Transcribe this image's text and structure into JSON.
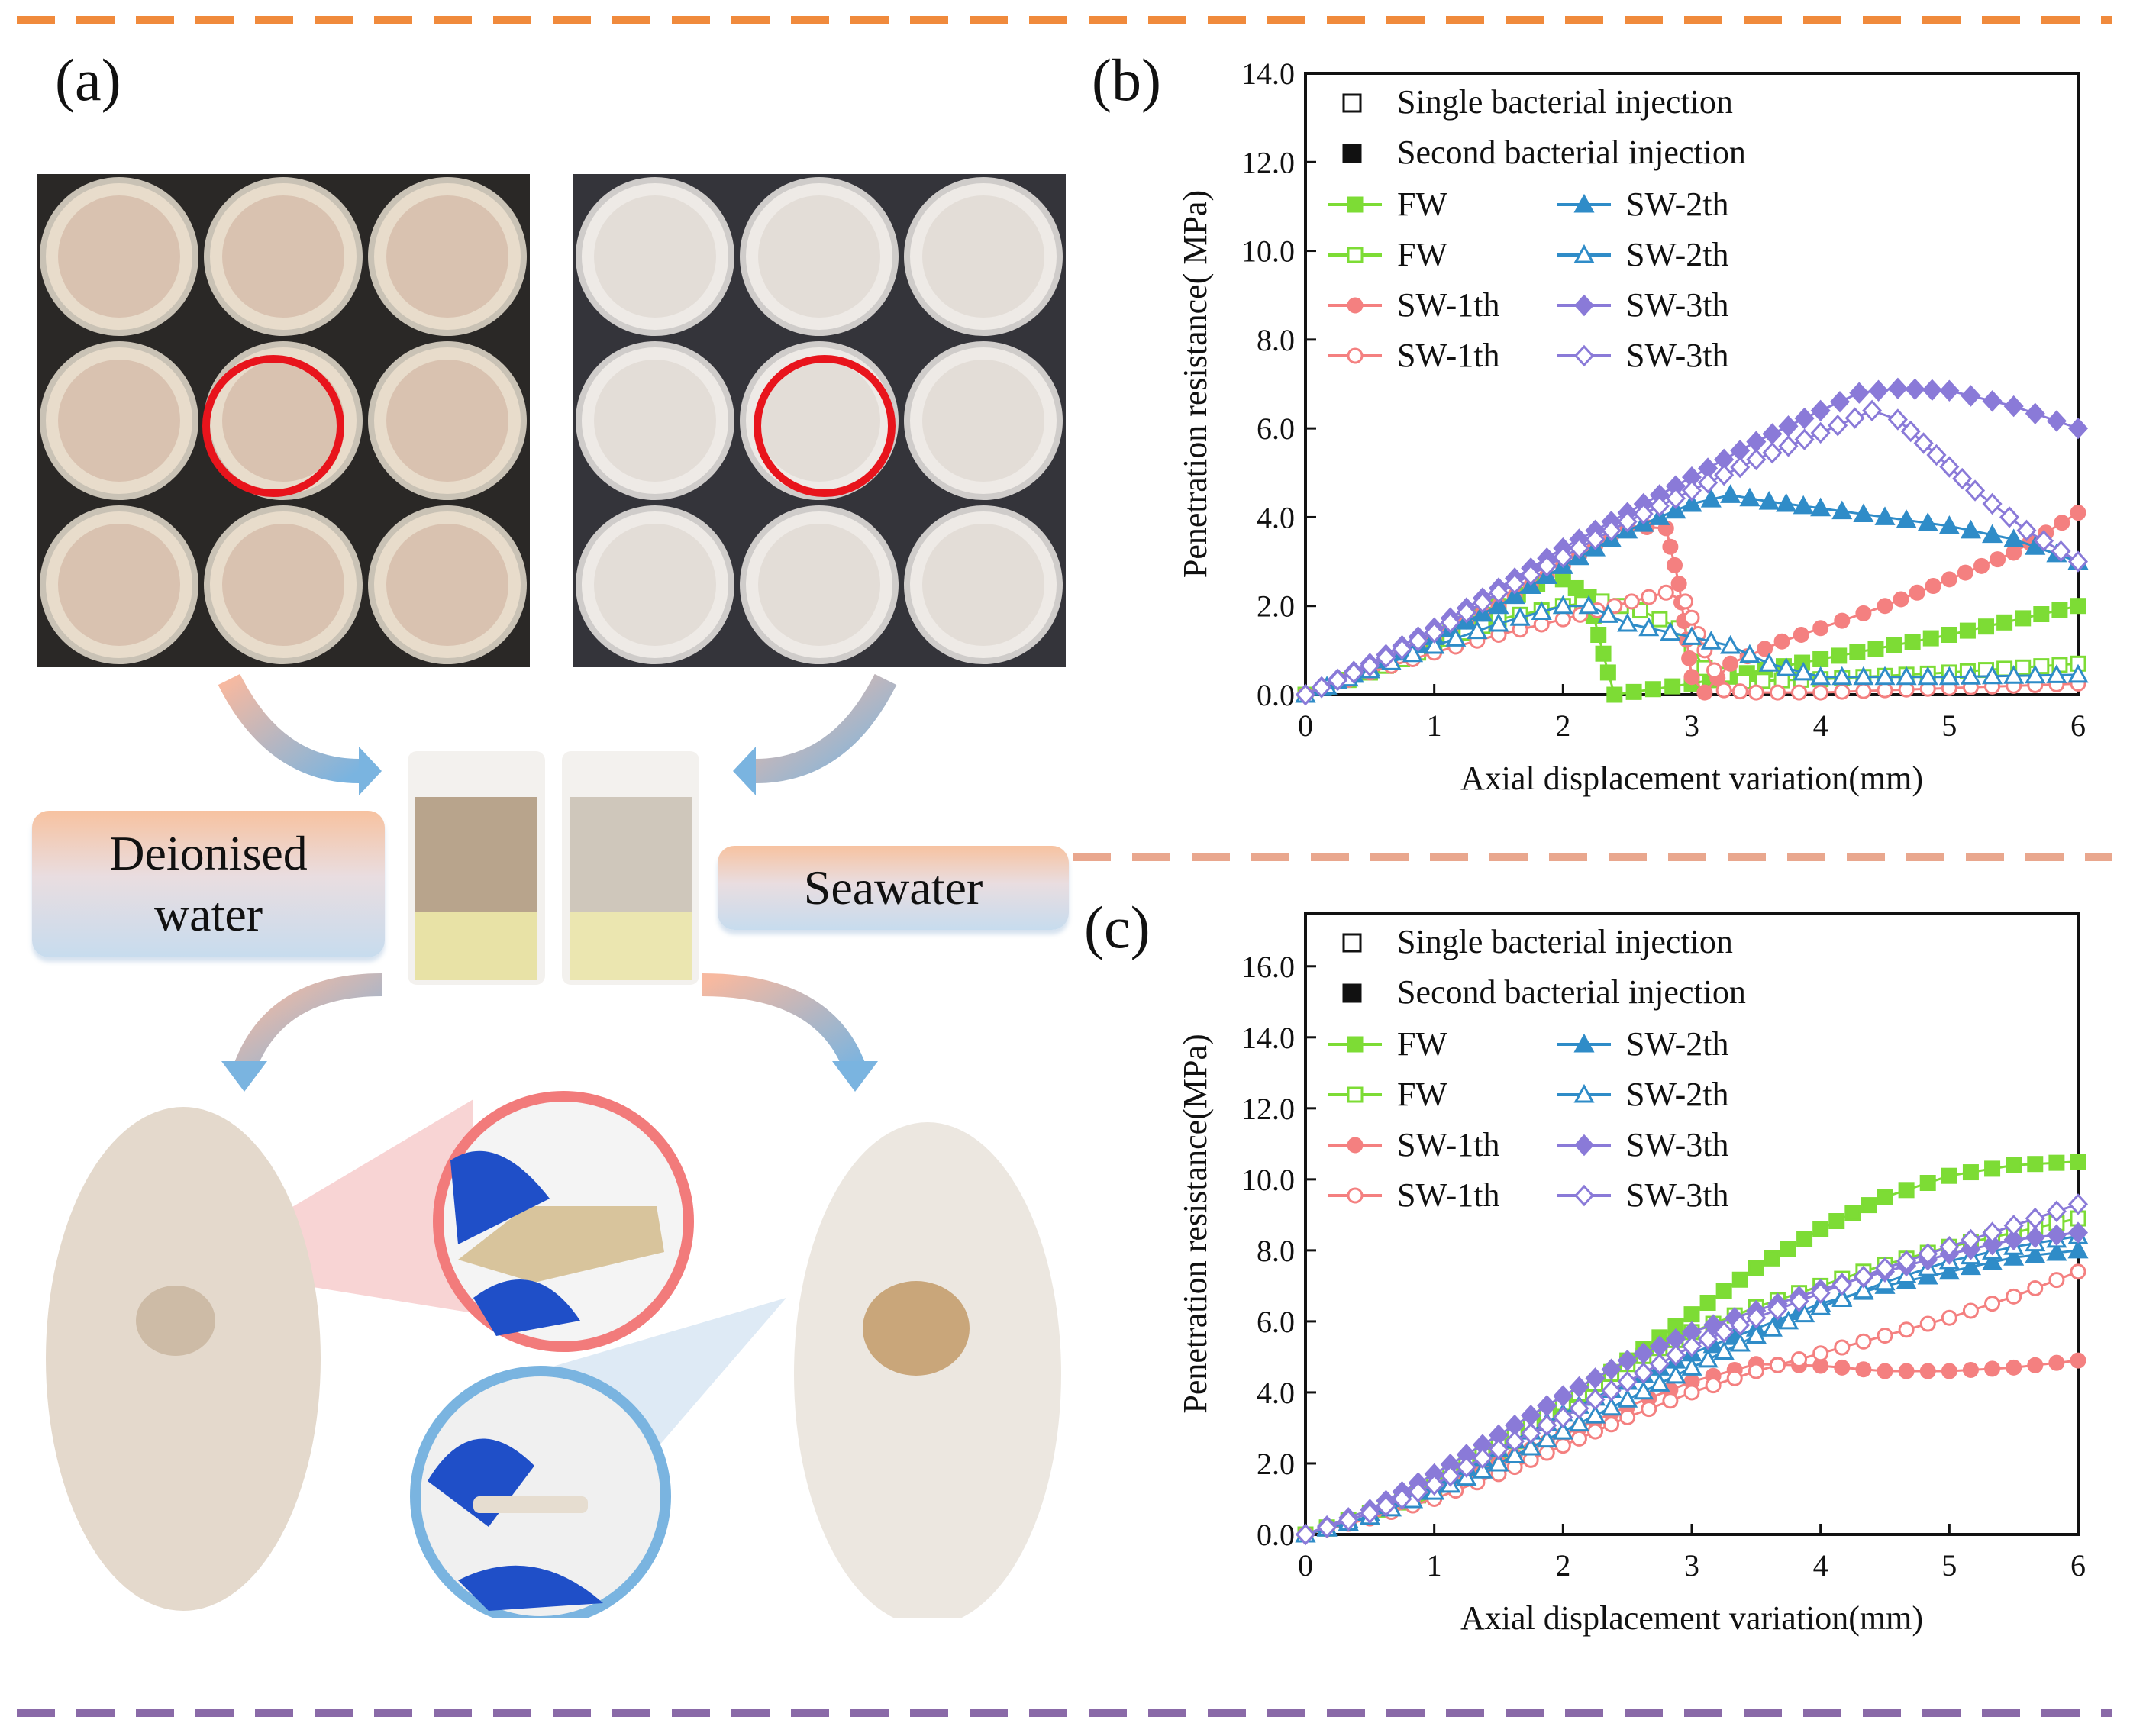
{
  "panels": {
    "a": {
      "label": "(a)",
      "left_banner": {
        "line1": "Deionised",
        "line2": "water"
      },
      "right_banner": "Seawater"
    },
    "b": {
      "label": "(b)"
    },
    "c": {
      "label": "(c)"
    }
  },
  "colors": {
    "frame_top": "#f08a3c",
    "frame_bottom": "#8a6aa8",
    "FW": "#7ddc35",
    "SW1": "#f48080",
    "SW2": "#2f8cc8",
    "SW3": "#8a7ad8"
  },
  "legend": {
    "single": "Single bacterial injection",
    "second": "Second bacterial injection",
    "entries": [
      {
        "label": "FW",
        "series": "FW",
        "fill": true
      },
      {
        "label": "FW",
        "series": "FW",
        "fill": false
      },
      {
        "label": "SW-1th",
        "series": "SW1",
        "fill": true
      },
      {
        "label": "SW-1th",
        "series": "SW1",
        "fill": false
      },
      {
        "label": "SW-2th",
        "series": "SW2",
        "fill": true
      },
      {
        "label": "SW-2th",
        "series": "SW2",
        "fill": false
      },
      {
        "label": "SW-3th",
        "series": "SW3",
        "fill": true
      },
      {
        "label": "SW-3th",
        "series": "SW3",
        "fill": false
      }
    ]
  },
  "chart_data": [
    {
      "id": "b",
      "type": "line",
      "xlabel": "Axial displacement variation(mm)",
      "ylabel": "Penetration resistance( MPa)",
      "xlim": [
        0,
        6
      ],
      "ylim": [
        0,
        14
      ],
      "xticks": [
        "0",
        "1",
        "2",
        "3",
        "4",
        "5",
        "6"
      ],
      "yticks": [
        "0.0",
        "2.0",
        "4.0",
        "6.0",
        "8.0",
        "10.0",
        "12.0",
        "14.0"
      ],
      "series": [
        {
          "name": "FW",
          "color_key": "FW",
          "marker": "square",
          "filled": true,
          "points": [
            [
              0,
              0
            ],
            [
              0.5,
              0.5
            ],
            [
              1,
              1.2
            ],
            [
              1.5,
              2.0
            ],
            [
              1.8,
              2.5
            ],
            [
              2.0,
              2.6
            ],
            [
              2.2,
              2.2
            ],
            [
              2.35,
              0.5
            ],
            [
              2.4,
              0
            ],
            [
              3,
              0.25
            ],
            [
              4,
              0.8
            ],
            [
              5,
              1.35
            ],
            [
              6,
              2.0
            ]
          ]
        },
        {
          "name": "FW",
          "color_key": "FW",
          "marker": "square",
          "filled": false,
          "points": [
            [
              0,
              0
            ],
            [
              0.5,
              0.5
            ],
            [
              1,
              1.1
            ],
            [
              1.5,
              1.7
            ],
            [
              2,
              2.0
            ],
            [
              2.3,
              2.1
            ],
            [
              2.6,
              1.9
            ],
            [
              2.9,
              1.5
            ],
            [
              3.1,
              0.6
            ],
            [
              3.4,
              0.3
            ],
            [
              4,
              0.35
            ],
            [
              5,
              0.5
            ],
            [
              6,
              0.7
            ]
          ]
        },
        {
          "name": "SW-1th",
          "color_key": "SW1",
          "marker": "circle",
          "filled": true,
          "points": [
            [
              0,
              0
            ],
            [
              0.5,
              0.6
            ],
            [
              1,
              1.3
            ],
            [
              1.5,
              2.0
            ],
            [
              2,
              2.9
            ],
            [
              2.5,
              3.8
            ],
            [
              2.8,
              3.75
            ],
            [
              2.9,
              2.5
            ],
            [
              3.0,
              0.4
            ],
            [
              3.1,
              0.05
            ],
            [
              3.3,
              0.7
            ],
            [
              3.7,
              1.2
            ],
            [
              4,
              1.5
            ],
            [
              4.5,
              2.0
            ],
            [
              5,
              2.6
            ],
            [
              5.5,
              3.2
            ],
            [
              6,
              4.1
            ]
          ]
        },
        {
          "name": "SW-1th",
          "color_key": "SW1",
          "marker": "circle",
          "filled": false,
          "points": [
            [
              0,
              0
            ],
            [
              0.5,
              0.5
            ],
            [
              1,
              0.95
            ],
            [
              1.5,
              1.35
            ],
            [
              2,
              1.7
            ],
            [
              2.4,
              2.0
            ],
            [
              2.8,
              2.3
            ],
            [
              2.95,
              2.1
            ],
            [
              3.1,
              1.0
            ],
            [
              3.25,
              0.1
            ],
            [
              3.5,
              0.05
            ],
            [
              4,
              0.05
            ],
            [
              5,
              0.15
            ],
            [
              6,
              0.25
            ]
          ]
        },
        {
          "name": "SW-2th",
          "color_key": "SW2",
          "marker": "triangle",
          "filled": true,
          "points": [
            [
              0,
              0
            ],
            [
              0.5,
              0.6
            ],
            [
              1,
              1.3
            ],
            [
              1.5,
              2.0
            ],
            [
              2,
              2.9
            ],
            [
              2.5,
              3.7
            ],
            [
              3,
              4.3
            ],
            [
              3.3,
              4.5
            ],
            [
              3.6,
              4.35
            ],
            [
              4,
              4.2
            ],
            [
              4.5,
              4.0
            ],
            [
              5,
              3.8
            ],
            [
              5.5,
              3.5
            ],
            [
              6,
              3.0
            ]
          ]
        },
        {
          "name": "SW-2th",
          "color_key": "SW2",
          "marker": "triangle",
          "filled": false,
          "points": [
            [
              0,
              0
            ],
            [
              0.5,
              0.55
            ],
            [
              1,
              1.1
            ],
            [
              1.5,
              1.6
            ],
            [
              2,
              2.0
            ],
            [
              2.2,
              2.0
            ],
            [
              2.5,
              1.6
            ],
            [
              3,
              1.3
            ],
            [
              3.3,
              1.1
            ],
            [
              3.6,
              0.7
            ],
            [
              4,
              0.4
            ],
            [
              5,
              0.4
            ],
            [
              6,
              0.45
            ]
          ]
        },
        {
          "name": "SW-3th",
          "color_key": "SW3",
          "marker": "diamond",
          "filled": true,
          "points": [
            [
              0,
              0
            ],
            [
              0.5,
              0.7
            ],
            [
              1,
              1.5
            ],
            [
              1.5,
              2.4
            ],
            [
              2,
              3.3
            ],
            [
              2.5,
              4.1
            ],
            [
              3,
              4.9
            ],
            [
              3.5,
              5.7
            ],
            [
              4,
              6.4
            ],
            [
              4.3,
              6.8
            ],
            [
              4.6,
              6.9
            ],
            [
              5,
              6.85
            ],
            [
              5.5,
              6.5
            ],
            [
              6,
              6.0
            ]
          ]
        },
        {
          "name": "SW-3th",
          "color_key": "SW3",
          "marker": "diamond",
          "filled": false,
          "points": [
            [
              0,
              0
            ],
            [
              0.5,
              0.65
            ],
            [
              1,
              1.4
            ],
            [
              1.5,
              2.3
            ],
            [
              2,
              3.1
            ],
            [
              2.5,
              3.9
            ],
            [
              3,
              4.6
            ],
            [
              3.5,
              5.3
            ],
            [
              4,
              5.9
            ],
            [
              4.4,
              6.4
            ],
            [
              4.6,
              6.2
            ],
            [
              4.9,
              5.4
            ],
            [
              5.2,
              4.6
            ],
            [
              5.6,
              3.7
            ],
            [
              6,
              3.0
            ]
          ]
        }
      ]
    },
    {
      "id": "c",
      "type": "line",
      "xlabel": "Axial displacement variation(mm)",
      "ylabel": "Penetration resistance(MPa)",
      "xlim": [
        0,
        6
      ],
      "ylim": [
        0,
        17.5
      ],
      "xticks": [
        "0",
        "1",
        "2",
        "3",
        "4",
        "5",
        "6"
      ],
      "yticks": [
        "0.0",
        "2.0",
        "4.0",
        "6.0",
        "8.0",
        "10.0",
        "12.0",
        "14.0",
        "16.0"
      ],
      "series": [
        {
          "name": "FW",
          "color_key": "FW",
          "marker": "square",
          "filled": true,
          "points": [
            [
              0,
              0
            ],
            [
              0.5,
              0.5
            ],
            [
              1,
              1.3
            ],
            [
              1.5,
              2.3
            ],
            [
              2,
              3.6
            ],
            [
              2.5,
              4.9
            ],
            [
              3,
              6.2
            ],
            [
              3.5,
              7.5
            ],
            [
              4,
              8.6
            ],
            [
              4.5,
              9.5
            ],
            [
              5,
              10.1
            ],
            [
              5.5,
              10.4
            ],
            [
              6,
              10.5
            ]
          ]
        },
        {
          "name": "FW",
          "color_key": "FW",
          "marker": "square",
          "filled": false,
          "points": [
            [
              0,
              0
            ],
            [
              0.5,
              0.6
            ],
            [
              1,
              1.4
            ],
            [
              1.5,
              2.5
            ],
            [
              2,
              3.7
            ],
            [
              2.5,
              4.8
            ],
            [
              3,
              5.7
            ],
            [
              3.5,
              6.4
            ],
            [
              4,
              7.0
            ],
            [
              4.5,
              7.6
            ],
            [
              5,
              8.1
            ],
            [
              5.5,
              8.5
            ],
            [
              6,
              8.9
            ]
          ]
        },
        {
          "name": "SW-1th",
          "color_key": "SW1",
          "marker": "circle",
          "filled": true,
          "points": [
            [
              0,
              0
            ],
            [
              0.5,
              0.5
            ],
            [
              1,
              1.2
            ],
            [
              1.5,
              2.0
            ],
            [
              2,
              2.8
            ],
            [
              2.5,
              3.6
            ],
            [
              3,
              4.3
            ],
            [
              3.5,
              4.8
            ],
            [
              4,
              4.75
            ],
            [
              4.5,
              4.6
            ],
            [
              5,
              4.6
            ],
            [
              5.5,
              4.7
            ],
            [
              6,
              4.9
            ]
          ]
        },
        {
          "name": "SW-1th",
          "color_key": "SW1",
          "marker": "circle",
          "filled": false,
          "points": [
            [
              0,
              0
            ],
            [
              0.5,
              0.45
            ],
            [
              1,
              1.0
            ],
            [
              1.5,
              1.7
            ],
            [
              2,
              2.5
            ],
            [
              2.5,
              3.3
            ],
            [
              3,
              4.0
            ],
            [
              3.5,
              4.6
            ],
            [
              4,
              5.1
            ],
            [
              4.5,
              5.6
            ],
            [
              5,
              6.1
            ],
            [
              5.5,
              6.7
            ],
            [
              6,
              7.4
            ]
          ]
        },
        {
          "name": "SW-2th",
          "color_key": "SW2",
          "marker": "triangle",
          "filled": true,
          "points": [
            [
              0,
              0
            ],
            [
              0.5,
              0.6
            ],
            [
              1,
              1.4
            ],
            [
              1.5,
              2.4
            ],
            [
              2,
              3.4
            ],
            [
              2.5,
              4.3
            ],
            [
              3,
              5.1
            ],
            [
              3.5,
              5.8
            ],
            [
              4,
              6.5
            ],
            [
              4.5,
              7.0
            ],
            [
              5,
              7.4
            ],
            [
              5.5,
              7.8
            ],
            [
              6,
              8.0
            ]
          ]
        },
        {
          "name": "SW-2th",
          "color_key": "SW2",
          "marker": "triangle",
          "filled": false,
          "points": [
            [
              0,
              0
            ],
            [
              0.5,
              0.5
            ],
            [
              1,
              1.2
            ],
            [
              1.5,
              2.0
            ],
            [
              2,
              2.9
            ],
            [
              2.5,
              3.8
            ],
            [
              3,
              4.7
            ],
            [
              3.5,
              5.6
            ],
            [
              4,
              6.4
            ],
            [
              4.5,
              7.1
            ],
            [
              5,
              7.7
            ],
            [
              5.5,
              8.1
            ],
            [
              6,
              8.4
            ]
          ]
        },
        {
          "name": "SW-3th",
          "color_key": "SW3",
          "marker": "diamond",
          "filled": true,
          "points": [
            [
              0,
              0
            ],
            [
              0.5,
              0.7
            ],
            [
              1,
              1.7
            ],
            [
              1.5,
              2.8
            ],
            [
              2,
              3.9
            ],
            [
              2.5,
              4.9
            ],
            [
              3,
              5.7
            ],
            [
              3.5,
              6.3
            ],
            [
              4,
              6.9
            ],
            [
              4.5,
              7.4
            ],
            [
              5,
              7.9
            ],
            [
              5.5,
              8.3
            ],
            [
              6,
              8.5
            ]
          ]
        },
        {
          "name": "SW-3th",
          "color_key": "SW3",
          "marker": "diamond",
          "filled": false,
          "points": [
            [
              0,
              0
            ],
            [
              0.5,
              0.6
            ],
            [
              1,
              1.4
            ],
            [
              1.5,
              2.4
            ],
            [
              2,
              3.3
            ],
            [
              2.5,
              4.3
            ],
            [
              3,
              5.3
            ],
            [
              3.5,
              6.1
            ],
            [
              4,
              6.8
            ],
            [
              4.5,
              7.5
            ],
            [
              5,
              8.1
            ],
            [
              5.5,
              8.7
            ],
            [
              6,
              9.3
            ]
          ]
        }
      ]
    }
  ]
}
